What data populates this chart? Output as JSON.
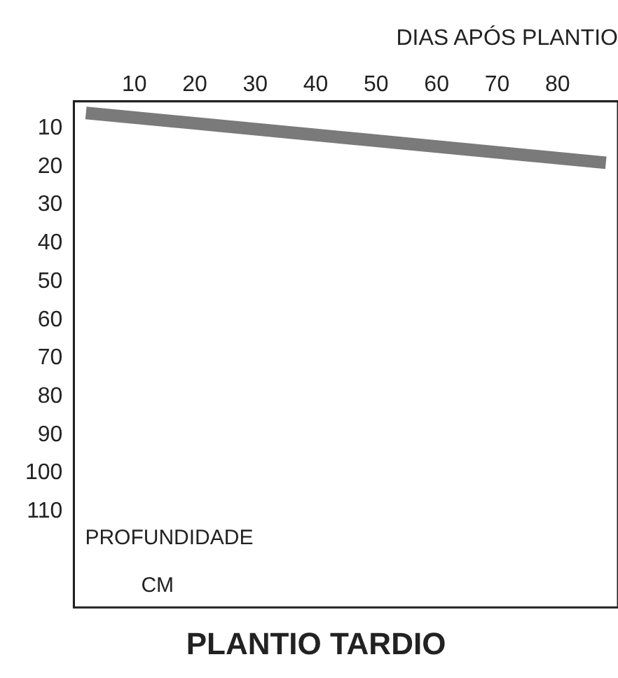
{
  "chart_data": {
    "type": "line",
    "title": "PLANTIO TARDIO",
    "xlabel": "DIAS APÓS PLANTIO",
    "annotations": [
      "PROFUNDIDADE",
      "CM"
    ],
    "x": [
      2,
      88
    ],
    "series": [
      {
        "color": "#7a7a7a",
        "values": [
          6,
          19
        ]
      }
    ],
    "xlim": [
      0,
      90
    ],
    "xticks": [
      10,
      20,
      30,
      40,
      50,
      60,
      70,
      80
    ],
    "ylim": [
      135,
      3
    ],
    "yticks": [
      10,
      20,
      30,
      40,
      50,
      60,
      70,
      80,
      90,
      100,
      110
    ],
    "grid": false,
    "legend": false,
    "marker": "none",
    "line_style": "solid"
  }
}
